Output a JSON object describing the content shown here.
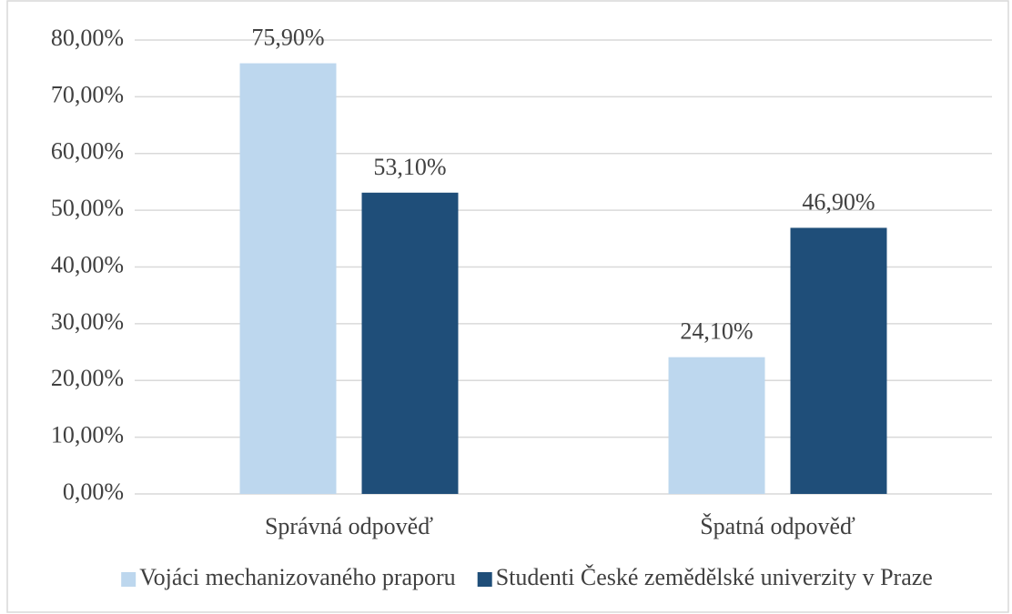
{
  "chart_data": {
    "type": "bar",
    "categories": [
      "Správná odpověď",
      "Špatná odpověď"
    ],
    "series": [
      {
        "name": "Vojáci mechanizovaného praporu",
        "color": "#bdd7ee",
        "values": [
          75.9,
          24.1
        ],
        "value_labels": [
          "75,90%",
          "24,10%"
        ]
      },
      {
        "name": "Studenti České zemědělské univerzity v Praze",
        "color": "#1f4e79",
        "values": [
          53.1,
          46.9
        ],
        "value_labels": [
          "53,10%",
          "46,90%"
        ]
      }
    ],
    "ylim": [
      0,
      80
    ],
    "yticks": [
      {
        "value": 0,
        "label": "0,00%"
      },
      {
        "value": 10,
        "label": "10,00%"
      },
      {
        "value": 20,
        "label": "20,00%"
      },
      {
        "value": 30,
        "label": "30,00%"
      },
      {
        "value": 40,
        "label": "40,00%"
      },
      {
        "value": 50,
        "label": "50,00%"
      },
      {
        "value": 60,
        "label": "60,00%"
      },
      {
        "value": 70,
        "label": "70,00%"
      },
      {
        "value": 80,
        "label": "80,00%"
      }
    ],
    "grid": true,
    "legend": "bottom"
  }
}
